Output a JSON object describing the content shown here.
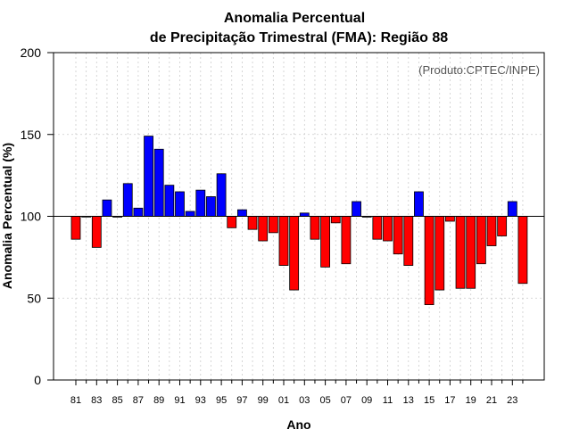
{
  "chart_data": {
    "type": "bar",
    "title_line1": "Anomalia Percentual",
    "title_line2": "de Precipitação Trimestral (FMA): Região 88",
    "xlabel": "Ano",
    "ylabel": "Anomalia Percentual (%)",
    "credit": "(Produto:CPTEC/INPE)",
    "baseline": 100,
    "ylim": [
      0,
      200
    ],
    "yticks": [
      0,
      50,
      100,
      150,
      200
    ],
    "grid": true,
    "colors": {
      "above": "#0000ff",
      "below": "#ff0000",
      "baseline": "#000000",
      "grid": "#cccccc"
    },
    "categories": [
      "81",
      "82",
      "83",
      "84",
      "85",
      "86",
      "87",
      "88",
      "89",
      "90",
      "91",
      "92",
      "93",
      "94",
      "95",
      "96",
      "97",
      "98",
      "99",
      "00",
      "01",
      "02",
      "03",
      "04",
      "05",
      "06",
      "07",
      "08",
      "09",
      "10",
      "11",
      "12",
      "13",
      "14",
      "15",
      "16",
      "17",
      "18",
      "19",
      "20",
      "21",
      "22",
      "23",
      "24"
    ],
    "xtick_labels": [
      "81",
      "83",
      "85",
      "87",
      "89",
      "91",
      "93",
      "95",
      "97",
      "99",
      "01",
      "03",
      "05",
      "07",
      "09",
      "11",
      "13",
      "15",
      "17",
      "19",
      "21",
      "23"
    ],
    "values": [
      86,
      100,
      81,
      110,
      99.5,
      120,
      105,
      149,
      141,
      119,
      115,
      103,
      116,
      112,
      126,
      93,
      104,
      92,
      85,
      90,
      70,
      55,
      102,
      86,
      69,
      96,
      71,
      109,
      99.5,
      86,
      85,
      77,
      70,
      115,
      46,
      55,
      97,
      56,
      56,
      71,
      82,
      88,
      109,
      59
    ]
  }
}
